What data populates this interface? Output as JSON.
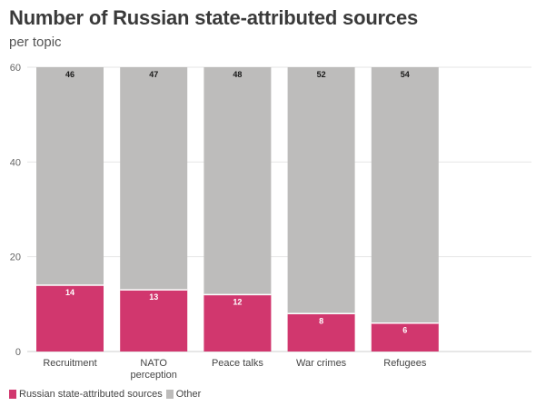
{
  "chart_data": {
    "type": "bar",
    "stacked": true,
    "title": "Number of Russian state-attributed sources",
    "subtitle": "per topic",
    "categories": [
      "Recruitment",
      "NATO perception",
      "Peace talks",
      "War crimes",
      "Refugees"
    ],
    "series": [
      {
        "name": "Russian state-attributed sources",
        "color": "#d1376e",
        "values": [
          14,
          13,
          12,
          8,
          6
        ]
      },
      {
        "name": "Other",
        "color": "#bdbcbb",
        "values": [
          46,
          47,
          48,
          52,
          54
        ]
      }
    ],
    "ylim": [
      0,
      60
    ],
    "yticks": [
      0,
      20,
      40,
      60
    ],
    "grid": true,
    "legend_position": "bottom-left"
  }
}
